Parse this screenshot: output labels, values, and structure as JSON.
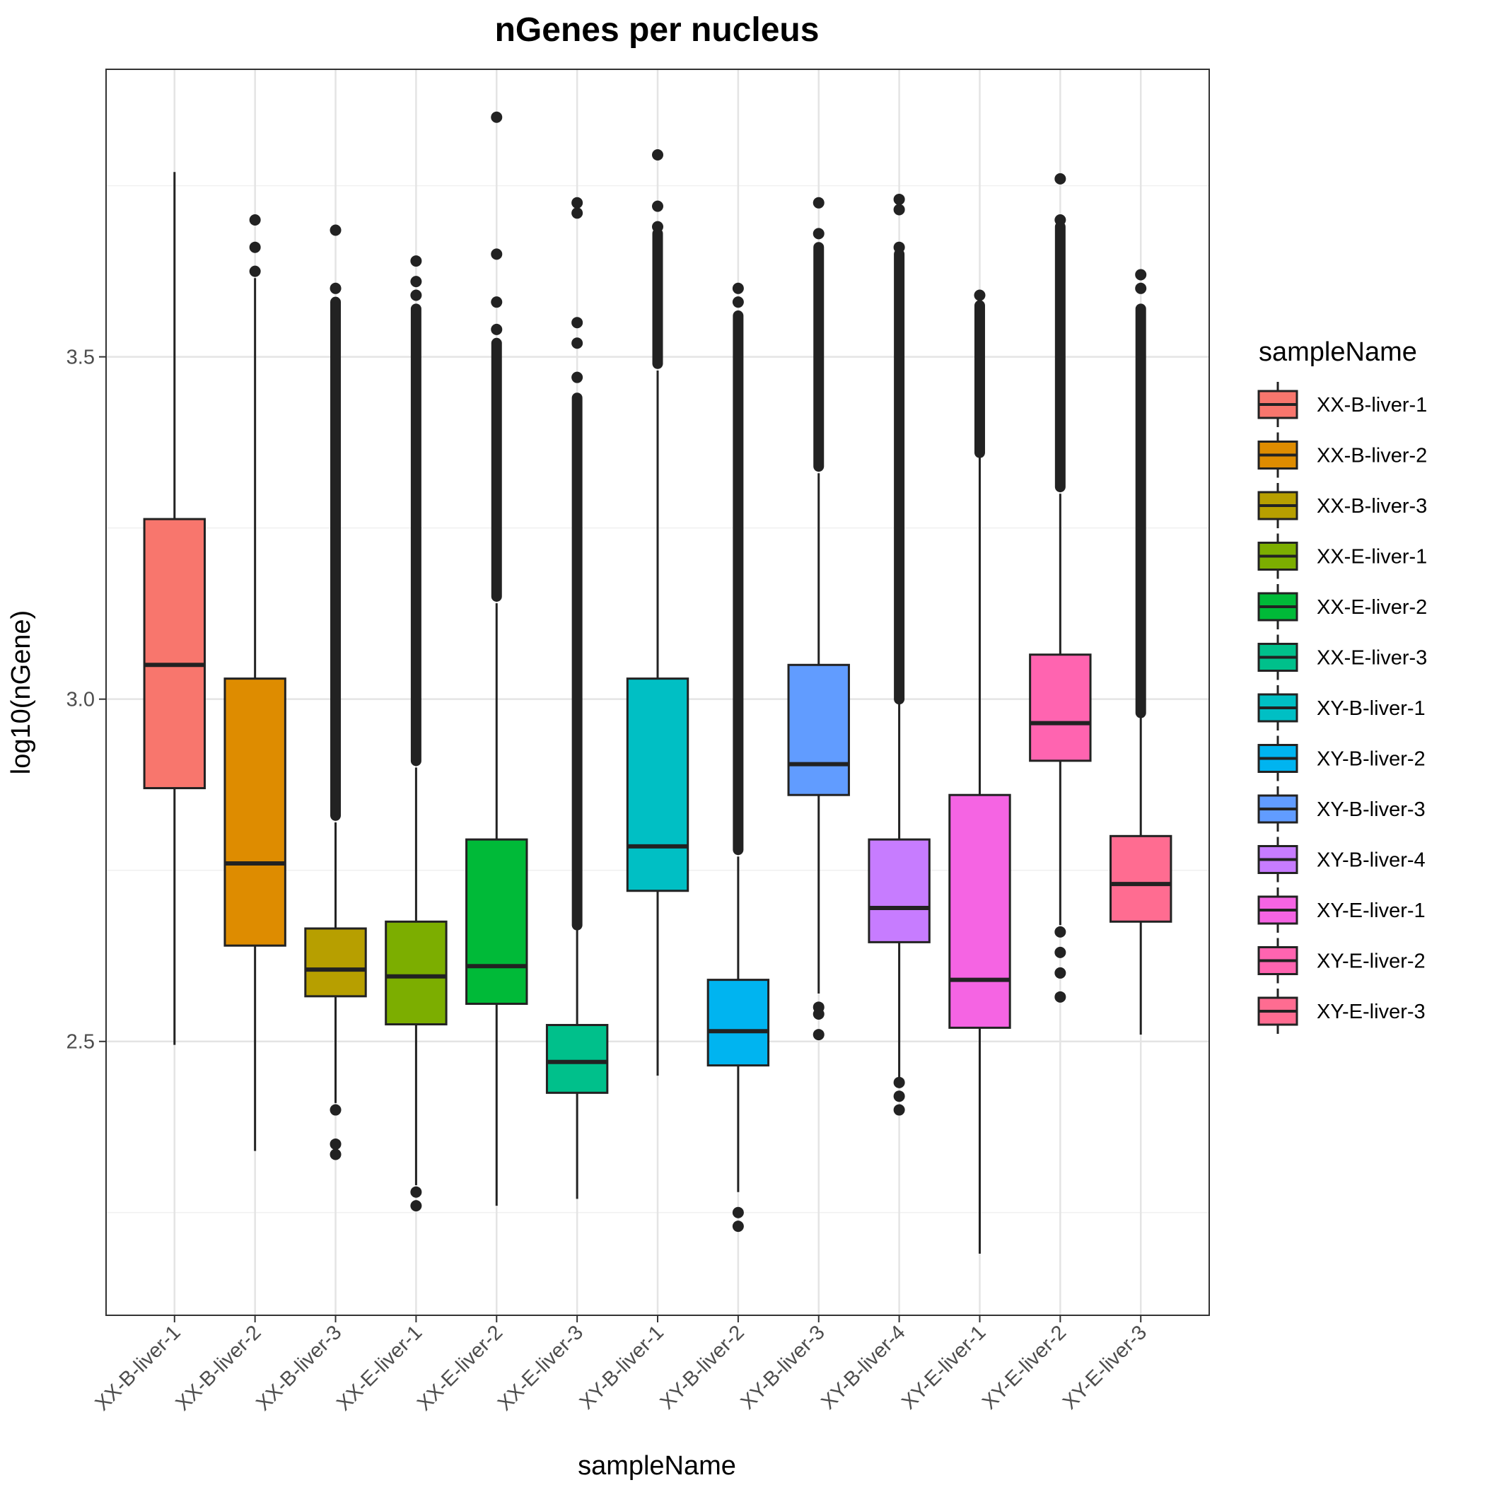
{
  "chart_data": {
    "type": "boxplot",
    "title": "nGenes per nucleus",
    "xlabel": "sampleName",
    "ylabel": "log10(nGene)",
    "ylim": [
      2.1,
      3.92
    ],
    "yticks": [
      2.5,
      3.0,
      3.5
    ],
    "ytick_labels": [
      "2.5",
      "3.0",
      "3.5"
    ],
    "grid": true,
    "legend": {
      "title": "sampleName",
      "position": "right"
    },
    "series": [
      {
        "name": "XX-B-liver-1",
        "color": "#F8766D",
        "lower_whisker": 2.495,
        "q1": 2.87,
        "median": 3.05,
        "q3": 3.263,
        "upper_whisker": 3.77,
        "outliers_low": [],
        "outliers_high": []
      },
      {
        "name": "XX-B-liver-2",
        "color": "#DE8C00",
        "lower_whisker": 2.34,
        "q1": 2.64,
        "median": 2.76,
        "q3": 3.03,
        "upper_whisker": 3.615,
        "outliers_low": [],
        "outliers_high": [
          3.625,
          3.66,
          3.7
        ]
      },
      {
        "name": "XX-B-liver-3",
        "color": "#B79F00",
        "lower_whisker": 2.41,
        "q1": 2.566,
        "median": 2.605,
        "q3": 2.665,
        "upper_whisker": 2.82,
        "outliers_low": [
          2.4,
          2.35,
          2.335
        ],
        "outliers_high": [
          3.6,
          3.685
        ],
        "outlier_band_high": [
          2.83,
          3.58
        ]
      },
      {
        "name": "XX-E-liver-1",
        "color": "#7CAE00",
        "lower_whisker": 2.29,
        "q1": 2.525,
        "median": 2.595,
        "q3": 2.675,
        "upper_whisker": 2.9,
        "outliers_low": [
          2.28,
          2.26
        ],
        "outliers_high": [
          3.59,
          3.61,
          3.64
        ],
        "outlier_band_high": [
          2.91,
          3.57
        ]
      },
      {
        "name": "XX-E-liver-2",
        "color": "#00BA38",
        "lower_whisker": 2.26,
        "q1": 2.555,
        "median": 2.61,
        "q3": 2.795,
        "upper_whisker": 3.14,
        "outliers_low": [],
        "outliers_high": [
          3.54,
          3.58,
          3.65,
          3.85
        ],
        "outlier_band_high": [
          3.15,
          3.52
        ]
      },
      {
        "name": "XX-E-liver-3",
        "color": "#00C08B",
        "lower_whisker": 2.27,
        "q1": 2.425,
        "median": 2.47,
        "q3": 2.524,
        "upper_whisker": 2.665,
        "outliers_low": [],
        "outliers_high": [
          3.47,
          3.52,
          3.55,
          3.71,
          3.725
        ],
        "outlier_band_high": [
          2.67,
          3.44
        ]
      },
      {
        "name": "XY-B-liver-1",
        "color": "#00BFC4",
        "lower_whisker": 2.45,
        "q1": 2.72,
        "median": 2.785,
        "q3": 3.03,
        "upper_whisker": 3.48,
        "outliers_low": [],
        "outliers_high": [
          3.69,
          3.72,
          3.795
        ],
        "outlier_band_high": [
          3.49,
          3.68
        ]
      },
      {
        "name": "XY-B-liver-2",
        "color": "#00B4F0",
        "lower_whisker": 2.28,
        "q1": 2.465,
        "median": 2.515,
        "q3": 2.59,
        "upper_whisker": 2.77,
        "outliers_low": [
          2.25,
          2.23
        ],
        "outliers_high": [
          3.58,
          3.6
        ],
        "outlier_band_high": [
          2.78,
          3.56
        ]
      },
      {
        "name": "XY-B-liver-3",
        "color": "#619CFF",
        "lower_whisker": 2.57,
        "q1": 2.86,
        "median": 2.905,
        "q3": 3.05,
        "upper_whisker": 3.33,
        "outliers_low": [
          2.55,
          2.54,
          2.51
        ],
        "outliers_high": [
          3.68,
          3.725
        ],
        "outlier_band_high": [
          3.34,
          3.66
        ]
      },
      {
        "name": "XY-B-liver-4",
        "color": "#C77CFF",
        "lower_whisker": 2.445,
        "q1": 2.645,
        "median": 2.695,
        "q3": 2.795,
        "upper_whisker": 2.995,
        "outliers_low": [
          2.44,
          2.42,
          2.4
        ],
        "outliers_high": [
          3.66,
          3.715,
          3.73
        ],
        "outlier_band_high": [
          3.0,
          3.65
        ]
      },
      {
        "name": "XY-E-liver-1",
        "color": "#F564E3",
        "lower_whisker": 2.19,
        "q1": 2.52,
        "median": 2.59,
        "q3": 2.86,
        "upper_whisker": 3.355,
        "outliers_low": [],
        "outliers_high": [
          3.59
        ],
        "outlier_band_high": [
          3.36,
          3.575
        ]
      },
      {
        "name": "XY-E-liver-2",
        "color": "#FF64B0",
        "lower_whisker": 2.67,
        "q1": 2.91,
        "median": 2.965,
        "q3": 3.065,
        "upper_whisker": 3.3,
        "outliers_low": [
          2.66,
          2.63,
          2.6,
          2.565
        ],
        "outliers_high": [
          3.7,
          3.76
        ],
        "outlier_band_high": [
          3.31,
          3.69
        ]
      },
      {
        "name": "XY-E-liver-3",
        "color": "#FF6C91",
        "lower_whisker": 2.51,
        "q1": 2.675,
        "median": 2.73,
        "q3": 2.8,
        "upper_whisker": 2.975,
        "outliers_low": [],
        "outliers_high": [
          3.6,
          3.62
        ],
        "outlier_band_high": [
          2.98,
          3.57
        ]
      }
    ]
  }
}
